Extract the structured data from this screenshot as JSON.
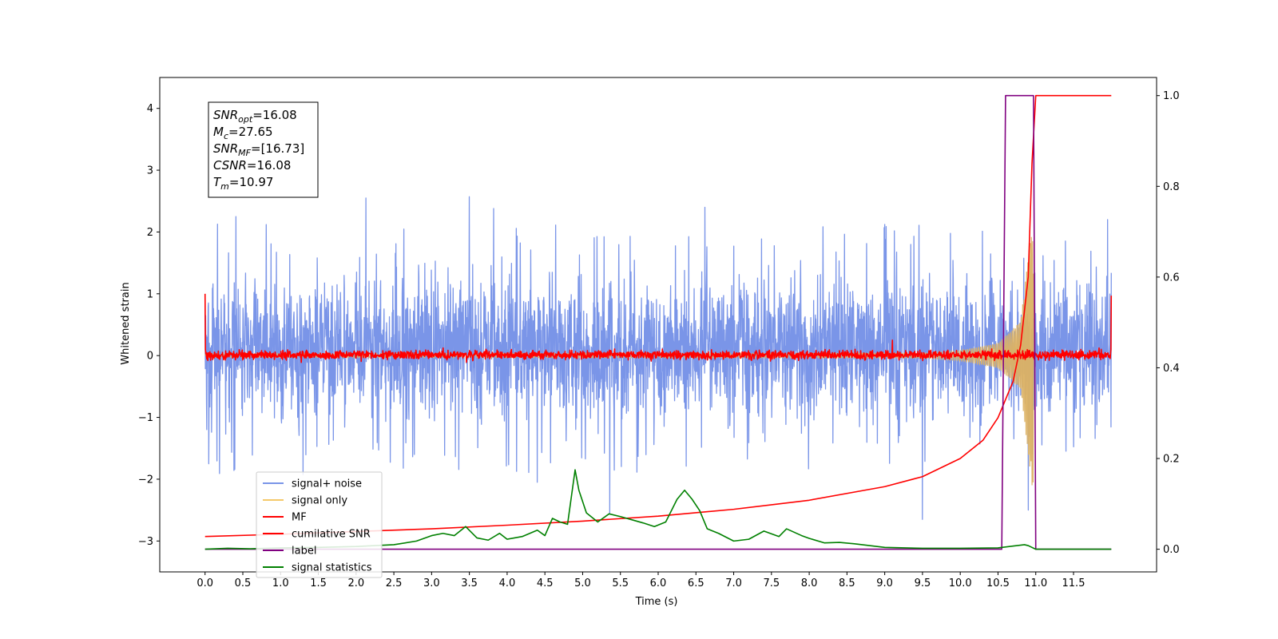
{
  "chart_data": {
    "type": "line",
    "xlabel": "Time (s)",
    "ylabel_left": "Whitened strain",
    "ylabel_right": "",
    "xlim": [
      -0.6,
      12.6
    ],
    "ylim_left": [
      -3.5,
      4.5
    ],
    "ylim_right": [
      -0.05,
      1.04
    ],
    "x_ticks": [
      0.0,
      0.5,
      1.0,
      1.5,
      2.0,
      2.5,
      3.0,
      3.5,
      4.0,
      4.5,
      5.0,
      5.5,
      6.0,
      6.5,
      7.0,
      7.5,
      8.0,
      8.5,
      9.0,
      9.5,
      10.0,
      10.5,
      11.0,
      11.5
    ],
    "x_tick_labels": [
      "0.0",
      "0.5",
      "1.0",
      "1.5",
      "2.0",
      "2.5",
      "3.0",
      "3.5",
      "4.0",
      "4.5",
      "5.0",
      "5.5",
      "6.0",
      "6.5",
      "7.0",
      "7.5",
      "8.0",
      "8.5",
      "9.0",
      "9.5",
      "10.0",
      "10.5",
      "11.0",
      "11.5"
    ],
    "y_left_ticks": [
      -3,
      -2,
      -1,
      0,
      1,
      2,
      3,
      4
    ],
    "y_left_tick_labels": [
      "−3",
      "−2",
      "−1",
      "0",
      "1",
      "2",
      "3",
      "4"
    ],
    "y_right_ticks": [
      0.0,
      0.2,
      0.4,
      0.6,
      0.8,
      1.0
    ],
    "y_right_tick_labels": [
      "0.0",
      "0.2",
      "0.4",
      "0.6",
      "0.8",
      "1.0"
    ],
    "grid": false,
    "legend_position": "lower-left",
    "series": [
      {
        "name": "signal+ noise",
        "axis": "left",
        "color": "#7a95e8",
        "kind": "noise",
        "x_range": [
          0.0,
          12.0
        ],
        "typical_range": [
          -1.3,
          1.5
        ],
        "peaks": [
          {
            "x": 2.13,
            "y": 2.55
          },
          {
            "x": 3.5,
            "y": 2.57
          },
          {
            "x": 3.82,
            "y": 2.38
          },
          {
            "x": 0.41,
            "y": 2.25
          },
          {
            "x": 6.62,
            "y": 2.4
          },
          {
            "x": 11.95,
            "y": 2.2
          },
          {
            "x": 9.5,
            "y": -2.65
          },
          {
            "x": 5.36,
            "y": -2.55
          },
          {
            "x": 10.9,
            "y": -2.5
          },
          {
            "x": 4.4,
            "y": -2.05
          },
          {
            "x": 0.05,
            "y": -1.75
          }
        ]
      },
      {
        "name": "signal only",
        "axis": "left",
        "color": "#f5c96a",
        "kind": "chirp",
        "x_range": [
          0.0,
          10.97
        ],
        "amplitude_envelope": [
          [
            0.0,
            0.03
          ],
          [
            9.5,
            0.04
          ],
          [
            10.0,
            0.08
          ],
          [
            10.5,
            0.2
          ],
          [
            10.8,
            0.55
          ],
          [
            10.95,
            2.1
          ]
        ]
      },
      {
        "name": "MF",
        "axis": "left",
        "color": "#ff0000",
        "kind": "noise",
        "x_range": [
          0.0,
          12.0
        ],
        "typical_range": [
          -0.08,
          0.1
        ],
        "edge_values": {
          "start": 1.0,
          "end": 0.97
        },
        "peaks": [
          {
            "x": 9.1,
            "y": 0.25
          }
        ]
      },
      {
        "name": "cumilative SNR",
        "axis": "right",
        "color": "#ff0000",
        "x": [
          0.0,
          1.0,
          2.0,
          3.0,
          4.0,
          5.0,
          6.0,
          7.0,
          8.0,
          9.0,
          9.5,
          10.0,
          10.3,
          10.5,
          10.7,
          10.8,
          10.9,
          10.95,
          11.0,
          12.0
        ],
        "y": [
          0.028,
          0.033,
          0.039,
          0.045,
          0.053,
          0.062,
          0.073,
          0.088,
          0.108,
          0.138,
          0.16,
          0.2,
          0.24,
          0.29,
          0.37,
          0.45,
          0.6,
          0.85,
          1.0,
          1.0
        ]
      },
      {
        "name": "label",
        "axis": "right",
        "color": "#800080",
        "x": [
          0.0,
          10.55,
          10.6,
          10.97,
          11.0,
          12.0
        ],
        "y": [
          0.0,
          0.0,
          1.0,
          1.0,
          0.0,
          0.0
        ]
      },
      {
        "name": "signal statistics",
        "axis": "right",
        "color": "#008000",
        "x": [
          0.0,
          0.3,
          0.6,
          1.0,
          1.5,
          2.0,
          2.5,
          2.8,
          3.0,
          3.15,
          3.3,
          3.45,
          3.6,
          3.75,
          3.9,
          4.0,
          4.2,
          4.4,
          4.5,
          4.6,
          4.7,
          4.8,
          4.9,
          4.95,
          5.05,
          5.2,
          5.35,
          5.5,
          5.65,
          5.8,
          5.95,
          6.1,
          6.25,
          6.35,
          6.45,
          6.55,
          6.65,
          6.8,
          7.0,
          7.2,
          7.4,
          7.6,
          7.7,
          7.9,
          8.0,
          8.2,
          8.4,
          8.6,
          9.0,
          9.5,
          10.0,
          10.5,
          10.85,
          10.9,
          11.0,
          12.0
        ],
        "y": [
          0.0,
          0.002,
          0.001,
          0.003,
          0.004,
          0.006,
          0.01,
          0.018,
          0.03,
          0.035,
          0.03,
          0.05,
          0.025,
          0.02,
          0.035,
          0.022,
          0.028,
          0.042,
          0.03,
          0.068,
          0.06,
          0.055,
          0.175,
          0.13,
          0.08,
          0.06,
          0.078,
          0.072,
          0.065,
          0.058,
          0.05,
          0.06,
          0.11,
          0.13,
          0.11,
          0.085,
          0.045,
          0.035,
          0.018,
          0.022,
          0.04,
          0.028,
          0.045,
          0.03,
          0.024,
          0.014,
          0.015,
          0.012,
          0.004,
          0.002,
          0.002,
          0.003,
          0.01,
          0.008,
          0.0,
          0.0
        ]
      }
    ],
    "annotation": {
      "lines": [
        {
          "main": "SNR",
          "sub": "opt",
          "value": "=16.08"
        },
        {
          "main": "M",
          "sub": "c",
          "value": "=27.65"
        },
        {
          "main": "SNR",
          "sub": "MF",
          "value": "=[16.73]"
        },
        {
          "main": "CSNR",
          "sub": "",
          "value": "=16.08"
        },
        {
          "main": "T",
          "sub": "m",
          "value": "=10.97"
        }
      ]
    }
  }
}
